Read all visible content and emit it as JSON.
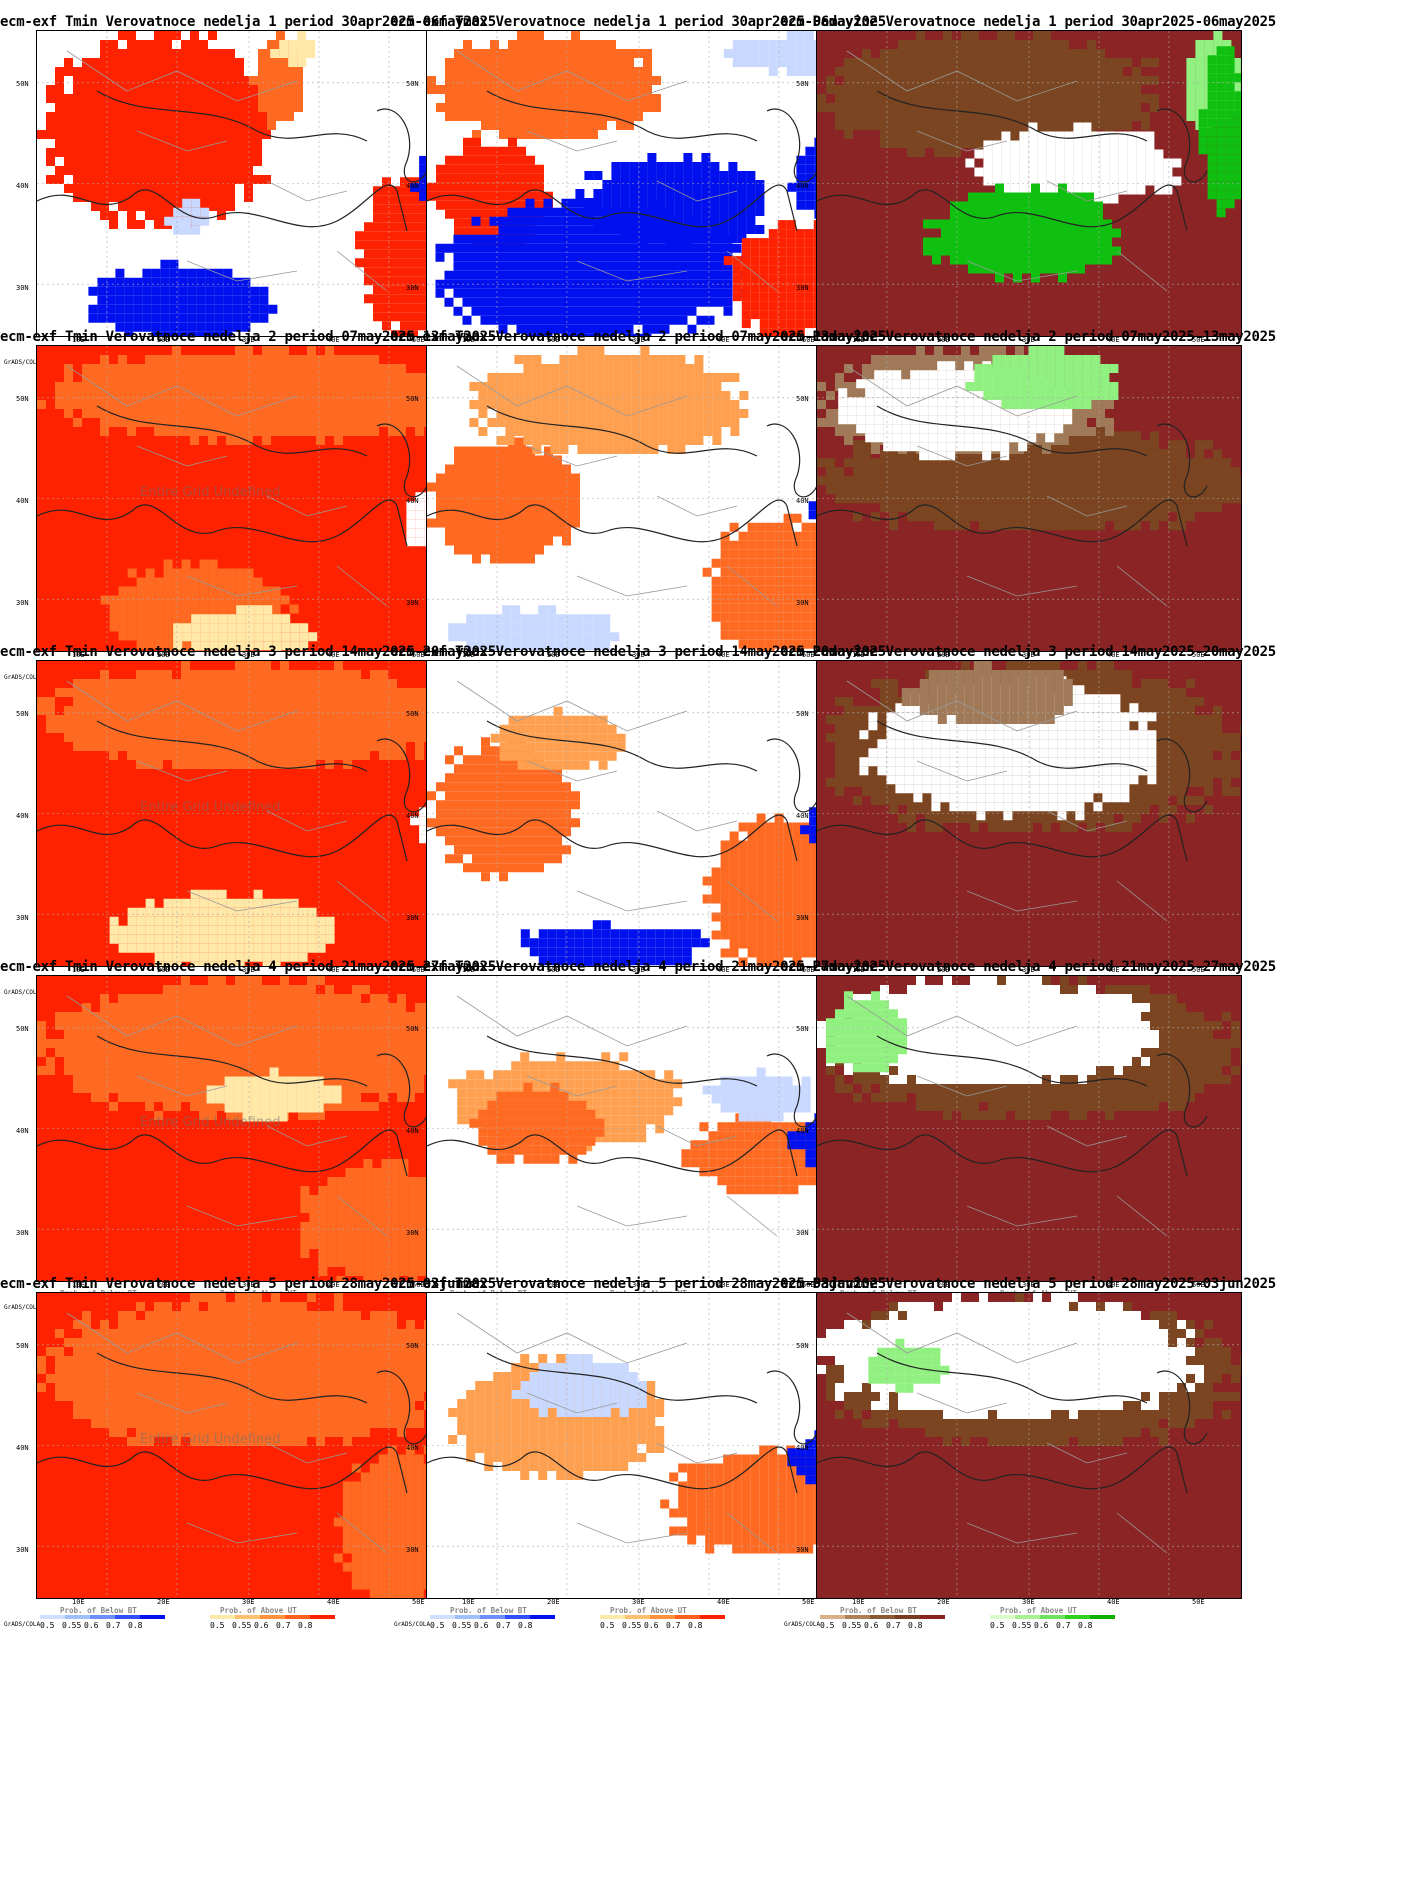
{
  "columns": [
    {
      "title_prefix": "ecm-exf Tmin Verovatnoce nedelja",
      "type": "tmin",
      "legend": {
        "below_title": "Prob. of Below BT",
        "above_title": "Prob. of Above UT",
        "below_colors": [
          "#cfe0ff",
          "#9ec0ff",
          "#6f8fff",
          "#3050ff",
          "#0010ee"
        ],
        "above_colors": [
          "#ffe9a8",
          "#ffc070",
          "#ff9040",
          "#ff6020",
          "#ff2000"
        ]
      }
    },
    {
      "title_prefix": "ecm-exf Tmax Verovatnoce nedelja",
      "type": "tmax",
      "legend": {
        "below_title": "Prob. of Below BT",
        "above_title": "Prob. of Above UT",
        "below_colors": [
          "#cfe0ff",
          "#9ec0ff",
          "#6f8fff",
          "#3050ff",
          "#0010ee"
        ],
        "above_colors": [
          "#ffe9a8",
          "#ffc070",
          "#ff9040",
          "#ff6020",
          "#ff2000"
        ]
      }
    },
    {
      "title_prefix": "ecm-Padavine Verovatnoce nedelja",
      "type": "precip",
      "legend": {
        "below_title": "Prob. of Below BT",
        "above_title": "Prob. of Above UT",
        "below_colors": [
          "#d8b088",
          "#b08058",
          "#8a5a34",
          "#7a3a20",
          "#8b2222"
        ],
        "above_colors": [
          "#d8ffc8",
          "#a8f090",
          "#70e060",
          "#30d020",
          "#10b000"
        ]
      }
    }
  ],
  "weeks": [
    {
      "n": 1,
      "period": "30apr2025-06may2025"
    },
    {
      "n": 2,
      "period": "07may2025-13may2025"
    },
    {
      "n": 3,
      "period": "14may2025-20may2025"
    },
    {
      "n": 4,
      "period": "21may2025-27may2025"
    },
    {
      "n": 5,
      "period": "28may2025-03jun2025"
    }
  ],
  "lat_labels": [
    "50N",
    "40N",
    "30N"
  ],
  "lon_labels": [
    "10E",
    "20E",
    "30E",
    "40E",
    "50E"
  ],
  "legend_values": [
    "0.5",
    "0.55",
    "0.6",
    "0.7",
    "0.8"
  ],
  "grads_label": "GrADS/COLA",
  "undefined_text": "Entire Grid Undefined",
  "undefined_panels": [
    "tmin-2",
    "tmin-3",
    "tmin-4",
    "tmin-5"
  ],
  "palette": {
    "red": "#ff2200",
    "orange": "#ff6a22",
    "lorange": "#ffa050",
    "cream": "#ffe8a8",
    "blue": "#0010ee",
    "mblue": "#4c6cff",
    "lblue": "#c8d8ff",
    "brown": "#8b2525",
    "mbrown": "#7a4520",
    "lbrown": "#a07a58",
    "green": "#10c010",
    "lgreen": "#90f080",
    "white": "#ffffff"
  },
  "fields": {
    "tmin-1": {
      "bg": "white",
      "blobs": [
        [
          "red",
          0,
          0,
          0.55,
          0.62
        ],
        [
          "orange",
          0.5,
          0,
          0.62,
          0.3
        ],
        [
          "red",
          0.75,
          0.45,
          1,
          1
        ],
        [
          "blue",
          0.1,
          0.75,
          0.55,
          1
        ],
        [
          "blue",
          0.88,
          0.38,
          0.98,
          0.58
        ],
        [
          "lblue",
          0.3,
          0.55,
          0.4,
          0.65
        ],
        [
          "cream",
          0.55,
          0,
          0.65,
          0.1
        ]
      ]
    },
    "tmax-1": {
      "bg": "white",
      "blobs": [
        [
          "orange",
          0,
          0,
          0.55,
          0.35
        ],
        [
          "red",
          0,
          0.35,
          0.28,
          0.7
        ],
        [
          "blue",
          0.02,
          0.55,
          0.75,
          1
        ],
        [
          "blue",
          0.35,
          0.4,
          0.8,
          0.7
        ],
        [
          "red",
          0.7,
          0.62,
          1,
          1
        ],
        [
          "lblue",
          0.7,
          0,
          1,
          0.12
        ],
        [
          "blue",
          0.85,
          0.35,
          1,
          0.6
        ]
      ]
    },
    "precip-1": {
      "bg": "brown",
      "blobs": [
        [
          "mbrown",
          0,
          0,
          0.8,
          0.4
        ],
        [
          "white",
          0.35,
          0.3,
          0.85,
          0.55
        ],
        [
          "green",
          0.25,
          0.5,
          0.7,
          0.8
        ],
        [
          "lgreen",
          0.85,
          0,
          1,
          0.3
        ],
        [
          "green",
          0.9,
          0.05,
          1,
          0.6
        ]
      ]
    },
    "tmin-2": {
      "bg": "red",
      "blobs": [
        [
          "orange",
          0,
          0,
          1,
          0.3
        ],
        [
          "orange",
          0.15,
          0.7,
          0.6,
          1
        ],
        [
          "cream",
          0.3,
          0.85,
          0.65,
          1
        ],
        [
          "white",
          0.85,
          0.45,
          0.98,
          0.65
        ]
      ]
    },
    "tmax-2": {
      "bg": "white",
      "blobs": [
        [
          "orange",
          0,
          0.3,
          0.35,
          0.7
        ],
        [
          "lorange",
          0.1,
          0,
          0.75,
          0.35
        ],
        [
          "orange",
          0.65,
          0.55,
          1,
          1
        ],
        [
          "blue",
          0.9,
          0.45,
          1,
          0.62
        ],
        [
          "lblue",
          0.05,
          0.85,
          0.45,
          1
        ]
      ]
    },
    "precip-2": {
      "bg": "brown",
      "blobs": [
        [
          "mbrown",
          0,
          0.25,
          1,
          0.6
        ],
        [
          "lbrown",
          0,
          0,
          0.7,
          0.35
        ],
        [
          "white",
          0.05,
          0.05,
          0.6,
          0.35
        ],
        [
          "lgreen",
          0.35,
          0,
          0.7,
          0.2
        ]
      ]
    },
    "tmin-3": {
      "bg": "red",
      "blobs": [
        [
          "orange",
          0,
          0,
          1,
          0.35
        ],
        [
          "cream",
          0.15,
          0.75,
          0.7,
          1
        ],
        [
          "white",
          0.88,
          0.45,
          0.98,
          0.6
        ]
      ]
    },
    "tmax-3": {
      "bg": "white",
      "blobs": [
        [
          "orange",
          0,
          0.25,
          0.35,
          0.7
        ],
        [
          "lorange",
          0.15,
          0.15,
          0.45,
          0.35
        ],
        [
          "orange",
          0.65,
          0.5,
          1,
          1
        ],
        [
          "blue",
          0.2,
          0.85,
          0.65,
          1
        ],
        [
          "blue",
          0.88,
          0.45,
          1,
          0.6
        ]
      ]
    },
    "precip-3": {
      "bg": "brown",
      "blobs": [
        [
          "mbrown",
          0,
          0,
          1,
          0.55
        ],
        [
          "white",
          0.1,
          0.05,
          0.8,
          0.5
        ],
        [
          "lbrown",
          0.2,
          0,
          0.6,
          0.2
        ]
      ]
    },
    "tmin-4": {
      "bg": "red",
      "blobs": [
        [
          "orange",
          0,
          0,
          1,
          0.45
        ],
        [
          "cream",
          0.4,
          0.3,
          0.7,
          0.45
        ],
        [
          "orange",
          0.6,
          0.6,
          1,
          1
        ]
      ]
    },
    "tmax-4": {
      "bg": "white",
      "blobs": [
        [
          "lorange",
          0.05,
          0.25,
          0.6,
          0.55
        ],
        [
          "orange",
          0.1,
          0.35,
          0.4,
          0.6
        ],
        [
          "orange",
          0.6,
          0.45,
          1,
          0.7
        ],
        [
          "blue",
          0.85,
          0.45,
          1,
          0.6
        ],
        [
          "lblue",
          0.65,
          0.3,
          0.9,
          0.45
        ]
      ]
    },
    "precip-4": {
      "bg": "brown",
      "blobs": [
        [
          "mbrown",
          0,
          0,
          1,
          0.45
        ],
        [
          "white",
          0,
          0,
          0.8,
          0.35
        ],
        [
          "lgreen",
          0,
          0.05,
          0.2,
          0.3
        ]
      ]
    },
    "tmin-5": {
      "bg": "red",
      "blobs": [
        [
          "orange",
          0,
          0,
          1,
          0.5
        ],
        [
          "orange",
          0.7,
          0.5,
          1,
          1
        ]
      ]
    },
    "tmax-5": {
      "bg": "white",
      "blobs": [
        [
          "lorange",
          0.05,
          0.2,
          0.55,
          0.6
        ],
        [
          "orange",
          0.55,
          0.5,
          1,
          0.85
        ],
        [
          "blue",
          0.85,
          0.45,
          1,
          0.62
        ],
        [
          "lblue",
          0.2,
          0.2,
          0.5,
          0.4
        ]
      ]
    },
    "precip-5": {
      "bg": "brown",
      "blobs": [
        [
          "mbrown",
          0,
          0,
          1,
          0.5
        ],
        [
          "white",
          0,
          0,
          0.9,
          0.4
        ],
        [
          "lgreen",
          0.1,
          0.15,
          0.3,
          0.3
        ]
      ]
    }
  }
}
